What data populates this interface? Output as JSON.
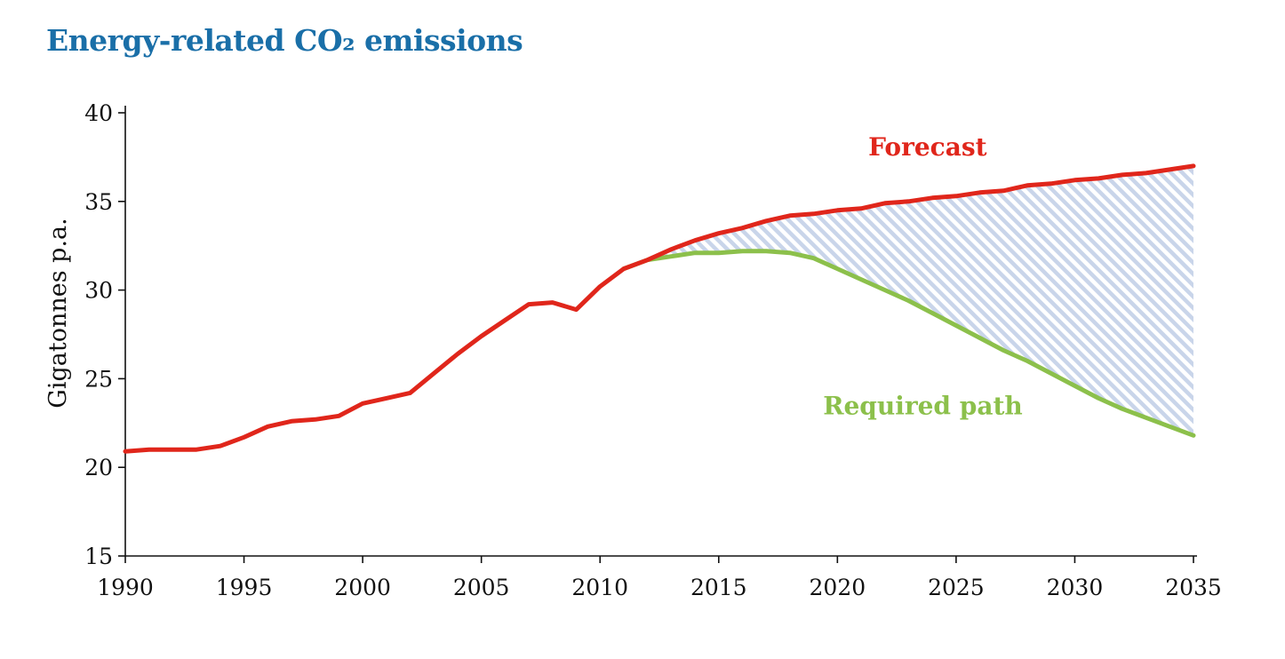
{
  "chart_data": {
    "type": "line",
    "title": "Energy-related CO₂ emissions",
    "title_color": "#1a6fa8",
    "ylabel": "Gigatonnes p.a.",
    "xlabel": "",
    "xlim": [
      1990,
      2035
    ],
    "ylim": [
      15,
      40
    ],
    "x_ticks": [
      1990,
      1995,
      2000,
      2005,
      2010,
      2015,
      2020,
      2025,
      2030,
      2035
    ],
    "y_ticks": [
      15,
      20,
      25,
      30,
      35,
      40
    ],
    "grid": false,
    "shaded_gap": {
      "between": [
        "Forecast",
        "Required path"
      ],
      "fill": "#c9d5ea",
      "pattern": "diagonal-hatch"
    },
    "series": [
      {
        "name": "Forecast",
        "color": "#e0261b",
        "x": [
          1990,
          1991,
          1992,
          1993,
          1994,
          1995,
          1996,
          1997,
          1998,
          1999,
          2000,
          2001,
          2002,
          2003,
          2004,
          2005,
          2006,
          2007,
          2008,
          2009,
          2010,
          2011,
          2012,
          2013,
          2014,
          2015,
          2016,
          2017,
          2018,
          2019,
          2020,
          2021,
          2022,
          2023,
          2024,
          2025,
          2026,
          2027,
          2028,
          2029,
          2030,
          2031,
          2032,
          2033,
          2034,
          2035
        ],
        "values": [
          20.9,
          21.0,
          21.0,
          21.0,
          21.2,
          21.7,
          22.3,
          22.6,
          22.7,
          22.9,
          23.6,
          23.9,
          24.2,
          25.3,
          26.4,
          27.4,
          28.3,
          29.2,
          29.3,
          28.9,
          30.2,
          31.2,
          31.7,
          32.3,
          32.8,
          33.2,
          33.5,
          33.9,
          34.2,
          34.3,
          34.5,
          34.6,
          34.9,
          35.0,
          35.2,
          35.3,
          35.5,
          35.6,
          35.9,
          36.0,
          36.2,
          36.3,
          36.5,
          36.6,
          36.8,
          37.0
        ]
      },
      {
        "name": "Required path",
        "color": "#8cc04b",
        "x": [
          2011,
          2012,
          2013,
          2014,
          2015,
          2016,
          2017,
          2018,
          2019,
          2020,
          2021,
          2022,
          2023,
          2024,
          2025,
          2026,
          2027,
          2028,
          2029,
          2030,
          2031,
          2032,
          2033,
          2034,
          2035
        ],
        "values": [
          31.2,
          31.7,
          31.9,
          32.1,
          32.1,
          32.2,
          32.2,
          32.1,
          31.8,
          31.2,
          30.6,
          30.0,
          29.4,
          28.7,
          28.0,
          27.3,
          26.6,
          26.0,
          25.3,
          24.6,
          23.9,
          23.3,
          22.8,
          22.3,
          21.8
        ]
      }
    ],
    "annotations": [
      {
        "text": "Forecast",
        "color": "#e0261b",
        "x": 2023.8,
        "y": 37.6
      },
      {
        "text": "Required path",
        "color": "#8cc04b",
        "x": 2023.6,
        "y": 23.0
      }
    ]
  }
}
